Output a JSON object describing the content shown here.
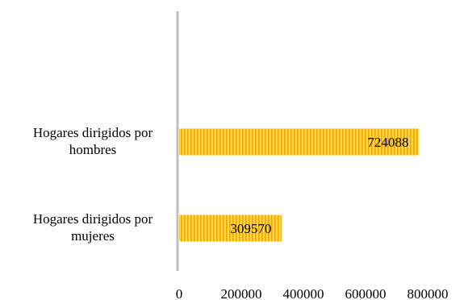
{
  "chart_data": {
    "type": "bar",
    "orientation": "horizontal",
    "categories": [
      [
        "Hogares dirigidos por",
        "hombres"
      ],
      [
        "Hogares dirigidos por",
        "mujeres"
      ]
    ],
    "values": [
      724088,
      309570
    ],
    "data_labels": [
      "724088",
      "309570"
    ],
    "xlim": [
      0,
      800000
    ],
    "x_ticks": [
      "0",
      "200000",
      "400000",
      "600000",
      "800000"
    ],
    "grid": false,
    "legend": "none",
    "colors": {
      "bar_fill": "#ffd54a",
      "bar_stripe": "#f0a800",
      "axis": "#bfbfbf"
    }
  }
}
